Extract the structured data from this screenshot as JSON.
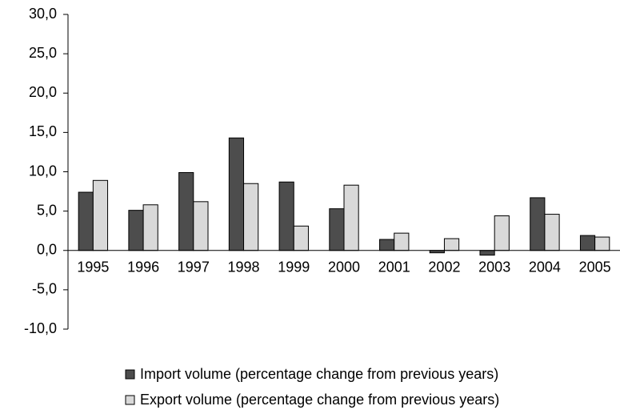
{
  "chart_data": {
    "type": "bar",
    "categories": [
      "1995",
      "1996",
      "1997",
      "1998",
      "1999",
      "2000",
      "2001",
      "2002",
      "2003",
      "2004",
      "2005"
    ],
    "series": [
      {
        "name": "Import volume (percentage change from previous years)",
        "color": "#4d4d4d",
        "values": [
          7.4,
          5.1,
          9.9,
          14.3,
          8.7,
          5.3,
          1.4,
          -0.3,
          -0.6,
          6.7,
          1.9
        ]
      },
      {
        "name": "Export volume (percentage change from previous years)",
        "color": "#d9d9d9",
        "values": [
          8.9,
          5.8,
          6.2,
          8.5,
          3.1,
          8.3,
          2.2,
          1.5,
          4.4,
          4.6,
          1.7
        ]
      }
    ],
    "ylim": [
      -10,
      30
    ],
    "yticks": [
      {
        "value": -10,
        "label": "-10,0"
      },
      {
        "value": -5,
        "label": "-5,0"
      },
      {
        "value": 0,
        "label": "0,0"
      },
      {
        "value": 5,
        "label": "5,0"
      },
      {
        "value": 10,
        "label": "10,0"
      },
      {
        "value": 15,
        "label": "15,0"
      },
      {
        "value": 20,
        "label": "20,0"
      },
      {
        "value": 25,
        "label": "25,0"
      },
      {
        "value": 30,
        "label": "30,0"
      }
    ],
    "grid": false,
    "legend": "bottom"
  }
}
